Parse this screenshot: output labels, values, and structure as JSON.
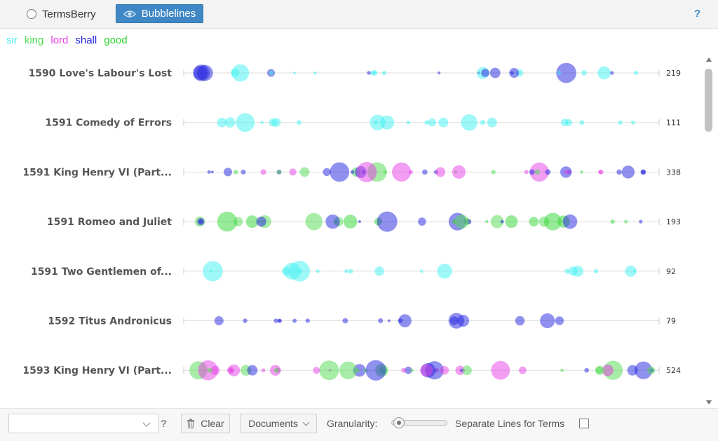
{
  "header": {
    "tab_termsberry": "TermsBerry",
    "tab_bubblelines": "Bubblelines",
    "help": "?"
  },
  "legend": [
    {
      "term": "sir",
      "color": "#3ff2f2"
    },
    {
      "term": "king",
      "color": "#4fdc4f"
    },
    {
      "term": "lord",
      "color": "#e63ee6"
    },
    {
      "term": "shall",
      "color": "#2222e0"
    },
    {
      "term": "good",
      "color": "#2fd62f"
    }
  ],
  "documents": [
    {
      "label": "1590 Love's Labour's Lost",
      "count": "219"
    },
    {
      "label": "1591 Comedy of Errors",
      "count": "111"
    },
    {
      "label": "1591 King Henry VI (Part...",
      "count": "338"
    },
    {
      "label": "1591 Romeo and Juliet",
      "count": "193"
    },
    {
      "label": "1591 Two Gentlemen of...",
      "count": "92"
    },
    {
      "label": "1592 Titus Andronicus",
      "count": "79"
    },
    {
      "label": "1593 King Henry VI (Part...",
      "count": "524"
    }
  ],
  "controls": {
    "term_input_value": "",
    "term_input_placeholder": "",
    "help": "?",
    "clear_label": "Clear",
    "documents_label": "Documents",
    "granularity_label": "Granularity:",
    "granularity_level": 0.1,
    "separate_lines_label": "Separate Lines for Terms",
    "separate_lines_checked": false
  },
  "icons": {
    "radio": "radio-unchecked-icon",
    "eye": "eye-icon",
    "trash": "trash-icon",
    "dropdown": "chevron-down-icon"
  }
}
